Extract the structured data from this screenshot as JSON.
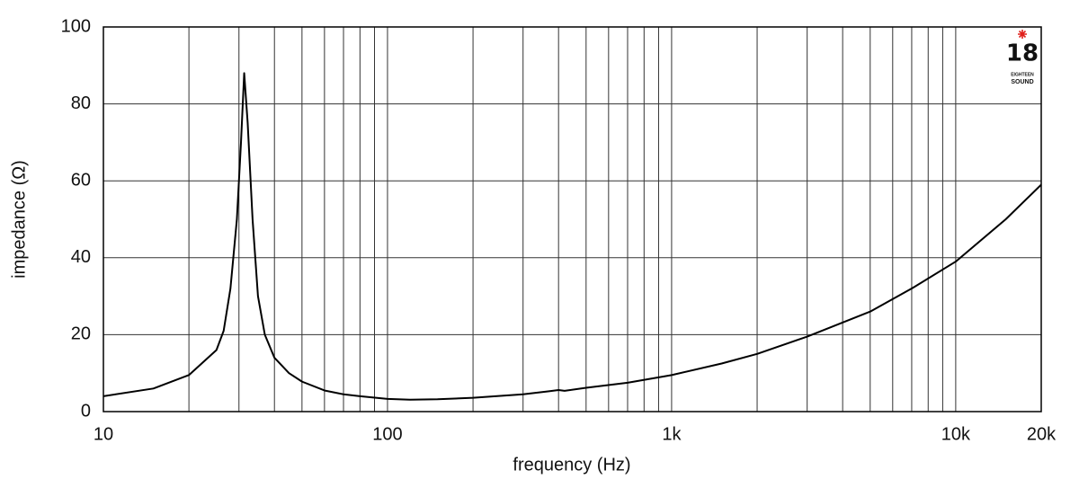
{
  "chart_data": {
    "type": "line",
    "x_label": "frequency (Hz)",
    "y_label": "impedance (Ω)",
    "x": [
      10,
      15,
      20,
      25,
      26.5,
      28,
      29.5,
      30.5,
      31.3,
      32.2,
      33.5,
      35,
      37,
      40,
      45,
      50,
      60,
      70,
      80,
      100,
      120,
      150,
      200,
      300,
      370,
      400,
      420,
      500,
      700,
      1000,
      1500,
      2000,
      3000,
      5000,
      7000,
      10000,
      15000,
      20000
    ],
    "values": [
      4,
      6,
      9.5,
      16,
      21,
      32,
      50,
      70,
      88,
      75,
      50,
      30,
      20,
      14,
      10,
      7.8,
      5.5,
      4.5,
      4,
      3.3,
      3.1,
      3.2,
      3.6,
      4.5,
      5.3,
      5.6,
      5.4,
      6.2,
      7.5,
      9.5,
      12.5,
      15,
      19.5,
      26,
      32,
      39,
      50,
      59
    ],
    "color": "#000000",
    "xlim": [
      10,
      20000
    ],
    "ylim": [
      0,
      100
    ],
    "x_log": true,
    "xticks": [
      10,
      100,
      {
        "value": 1000,
        "label": "1k"
      },
      {
        "value": 10000,
        "label": "10k"
      },
      {
        "value": 20000,
        "label": "20k"
      }
    ],
    "x_minor_gridlines": [
      20,
      30,
      40,
      50,
      60,
      70,
      80,
      90,
      200,
      300,
      400,
      500,
      600,
      700,
      800,
      900,
      2000,
      3000,
      4000,
      5000,
      6000,
      7000,
      8000,
      9000
    ],
    "yticks": [
      0,
      20,
      40,
      60,
      80,
      100
    ],
    "grid": true,
    "logo": {
      "number": "18",
      "line1": "EIGHTEEN",
      "line2": "SOUND"
    }
  }
}
